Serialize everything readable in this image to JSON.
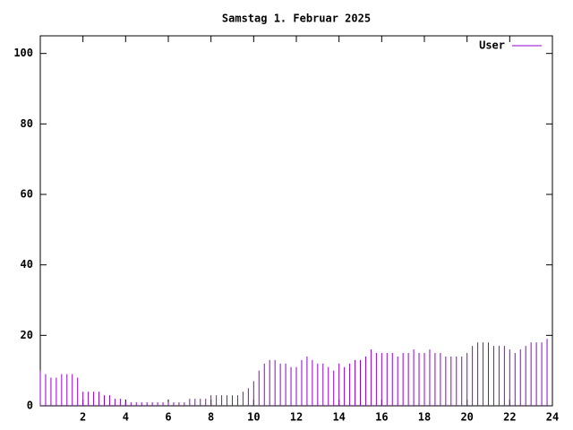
{
  "chart_data": {
    "type": "impulse",
    "title": "Samstag 1. Februar 2025",
    "series": [
      {
        "name": "User",
        "color": "#9400d3",
        "x": [
          0,
          0.25,
          0.5,
          0.75,
          1,
          1.25,
          1.5,
          1.75,
          2,
          2.25,
          2.5,
          2.75,
          3,
          3.25,
          3.5,
          3.75,
          4,
          4.25,
          4.5,
          4.75,
          5,
          5.25,
          5.5,
          5.75,
          6,
          6.25,
          6.5,
          6.75,
          7,
          7.25,
          7.5,
          7.75,
          8,
          8.25,
          8.5,
          8.75,
          9,
          9.25,
          9.5,
          9.75,
          10,
          10.25,
          10.5,
          10.75,
          11,
          11.25,
          11.5,
          11.75,
          12,
          12.25,
          12.5,
          12.75,
          13,
          13.25,
          13.5,
          13.75,
          14,
          14.25,
          14.5,
          14.75,
          15,
          15.25,
          15.5,
          15.75,
          16,
          16.25,
          16.5,
          16.75,
          17,
          17.25,
          17.5,
          17.75,
          18,
          18.25,
          18.5,
          18.75,
          19,
          19.25,
          19.5,
          19.75,
          20,
          20.25,
          20.5,
          20.75,
          21,
          21.25,
          21.5,
          21.75,
          22,
          22.25,
          22.5,
          22.75,
          23,
          23.25,
          23.5,
          23.75
        ],
        "values": [
          10,
          9,
          8,
          8,
          9,
          9,
          9,
          8,
          4,
          4,
          4,
          4,
          3,
          3,
          2,
          2,
          1,
          1,
          1,
          1,
          1,
          1,
          1,
          1,
          1,
          1,
          1,
          1,
          2,
          2,
          2,
          2,
          3,
          3,
          3,
          3,
          3,
          3,
          4,
          5,
          7,
          10,
          12,
          13,
          13,
          12,
          12,
          11,
          11,
          13,
          14,
          13,
          12,
          12,
          11,
          10,
          12,
          11,
          12,
          13,
          13,
          14,
          16,
          15,
          15,
          15,
          15,
          14,
          15,
          15,
          16,
          15,
          15,
          16,
          15,
          15,
          14,
          14,
          14,
          14,
          15,
          17,
          18,
          18,
          18,
          17,
          17,
          17,
          16,
          15,
          16,
          17,
          18,
          18,
          18,
          19
        ]
      }
    ],
    "xlim": [
      0,
      24
    ],
    "xticks": [
      2,
      4,
      6,
      8,
      10,
      12,
      14,
      16,
      18,
      20,
      22,
      24
    ],
    "ylim": [
      0,
      105
    ],
    "yticks": [
      0,
      20,
      40,
      60,
      80,
      100
    ],
    "legend": "top-right"
  }
}
